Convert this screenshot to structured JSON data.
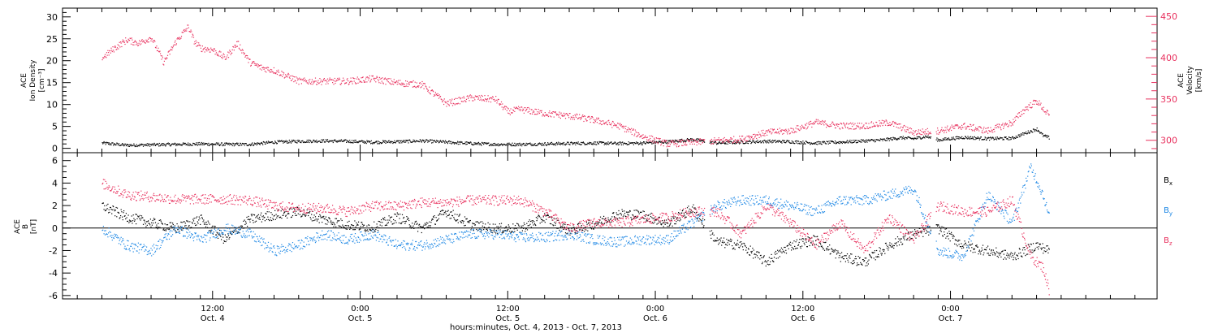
{
  "chart_data": [
    {
      "type": "scatter",
      "panel": "top",
      "ylabel_left": [
        "ACE",
        "Ion Density",
        "[cm⁻³]"
      ],
      "ylabel_right": [
        "ACE",
        "Velocity",
        "[km/s]"
      ],
      "ylim_left": [
        -1,
        32
      ],
      "yticks_left": [
        "0",
        "5",
        "10",
        "15",
        "20",
        "25",
        "30"
      ],
      "ylim_right": [
        285,
        460
      ],
      "yticks_right": [
        "300",
        "350",
        "400",
        "450"
      ],
      "colors": {
        "density": "#000000",
        "velocity": "#e8325f"
      },
      "series": [
        {
          "key": "density",
          "axis": "left",
          "x": [
            0,
            2,
            4,
            6,
            8,
            10,
            12,
            14,
            16,
            18,
            20,
            22,
            24,
            26,
            28,
            30,
            32,
            34,
            36,
            38,
            40,
            42,
            44,
            46,
            47.5,
            48,
            50,
            52,
            54,
            56,
            58,
            60,
            62,
            63.5,
            64,
            65,
            66,
            67,
            68,
            70,
            72,
            74,
            75,
            76,
            76.5,
            77
          ],
          "y": [
            1.3,
            0.8,
            0.9,
            1.0,
            1.1,
            1.0,
            1.0,
            1.5,
            1.7,
            1.8,
            1.7,
            1.5,
            1.6,
            1.8,
            1.5,
            1.2,
            1.0,
            1.0,
            1.1,
            1.2,
            1.3,
            1.2,
            1.3,
            1.6,
            2.0,
            2.1,
            1.3,
            1.5,
            1.7,
            1.6,
            1.3,
            1.5,
            1.8,
            2.0,
            2.2,
            2.5,
            2.3,
            2.8,
            2.0,
            2.6,
            2.3,
            2.4,
            3.5,
            4.5,
            3.0,
            2.5
          ],
          "gaps": [
            [
              49,
              49.4
            ],
            [
              67.4,
              67.8
            ]
          ]
        },
        {
          "key": "velocity",
          "axis": "right",
          "x": [
            0,
            1,
            2,
            3,
            4,
            5,
            6,
            7,
            7.5,
            8,
            9,
            10,
            11,
            12,
            13,
            14,
            16,
            18,
            20,
            22,
            24,
            26,
            28,
            30,
            32,
            33,
            34,
            36,
            38,
            40,
            42,
            44,
            46,
            48,
            50,
            52,
            54,
            56,
            58,
            60,
            62,
            64,
            66,
            68,
            70,
            72,
            74,
            75,
            76,
            77
          ],
          "y": [
            400,
            412,
            422,
            418,
            425,
            395,
            420,
            438,
            420,
            412,
            410,
            400,
            418,
            395,
            388,
            385,
            372,
            372,
            372,
            375,
            370,
            368,
            345,
            352,
            350,
            335,
            338,
            333,
            330,
            325,
            318,
            305,
            296,
            298,
            300,
            302,
            310,
            312,
            322,
            318,
            318,
            322,
            310,
            312,
            318,
            312,
            322,
            338,
            348,
            330
          ],
          "gaps": [
            [
              49,
              49.4
            ],
            [
              67.4,
              67.8
            ]
          ]
        }
      ]
    },
    {
      "type": "scatter",
      "panel": "bottom",
      "ylabel_left": [
        "ACE",
        "B",
        "[nT]"
      ],
      "ylim": [
        -6.3,
        6.7
      ],
      "yticks": [
        "-6",
        "-4",
        "-2",
        "0",
        "2",
        "4",
        "6"
      ],
      "zero_line": true,
      "legend": [
        "Bx",
        "By",
        "Bz"
      ],
      "legend_position": "right",
      "colors": {
        "Bx": "#000000",
        "By": "#1e88e5",
        "Bz": "#e8325f"
      },
      "series": [
        {
          "key": "Bx",
          "x": [
            0,
            2,
            4,
            6,
            8,
            10,
            12,
            14,
            16,
            18,
            20,
            22,
            24,
            26,
            28,
            30,
            32,
            34,
            36,
            38,
            40,
            42,
            44,
            46,
            48,
            50,
            52,
            54,
            56,
            58,
            60,
            62,
            64,
            66,
            68,
            70,
            72,
            74,
            76,
            77
          ],
          "y": [
            2.0,
            1.0,
            0.5,
            0.0,
            0.8,
            -1.0,
            0.8,
            1.2,
            1.5,
            0.8,
            0.3,
            0.1,
            1.0,
            0.0,
            1.5,
            0.3,
            0.0,
            0.0,
            1.0,
            -0.2,
            0.4,
            1.3,
            1.2,
            0.4,
            1.8,
            -1.2,
            -1.5,
            -3.0,
            -1.5,
            -1.0,
            -2.5,
            -3.0,
            -1.5,
            -0.5,
            0.0,
            -1.5,
            -2.0,
            -2.5,
            -1.5,
            -2.0
          ],
          "gaps": [
            [
              49,
              49.4
            ],
            [
              67.4,
              67.8
            ]
          ]
        },
        {
          "key": "By",
          "x": [
            0,
            2,
            4,
            6,
            8,
            10,
            12,
            14,
            16,
            18,
            20,
            22,
            24,
            26,
            28,
            30,
            32,
            34,
            36,
            38,
            40,
            42,
            44,
            46,
            48,
            50,
            52,
            54,
            56,
            58,
            60,
            62,
            64,
            66,
            68,
            70,
            72,
            74,
            75.5,
            76.5,
            77
          ],
          "y": [
            0.0,
            -1.5,
            -2.0,
            0.0,
            -1.0,
            0.0,
            -0.5,
            -2.0,
            -1.5,
            -0.5,
            -1.0,
            -0.5,
            -1.5,
            -1.5,
            -1.0,
            -0.5,
            -0.5,
            -0.8,
            -0.8,
            -0.5,
            -1.0,
            -1.2,
            -1.0,
            -1.0,
            0.5,
            2.0,
            2.5,
            2.5,
            2.0,
            1.5,
            2.5,
            2.5,
            3.0,
            3.5,
            -2.0,
            -2.5,
            3.0,
            0.5,
            5.5,
            3.0,
            1.0
          ],
          "gaps": [
            [
              49,
              49.4
            ],
            [
              67.4,
              67.8
            ]
          ]
        },
        {
          "key": "Bz",
          "x": [
            0,
            2,
            4,
            6,
            8,
            10,
            12,
            14,
            16,
            18,
            20,
            22,
            24,
            26,
            28,
            30,
            32,
            34,
            36,
            38,
            40,
            42,
            44,
            46,
            48,
            50,
            52,
            54,
            56,
            58,
            60,
            62,
            64,
            66,
            68,
            70,
            72,
            74,
            75.5,
            76.5,
            77
          ],
          "y": [
            4.0,
            3.0,
            2.8,
            2.6,
            2.6,
            2.6,
            2.5,
            2.0,
            1.8,
            1.8,
            1.5,
            2.0,
            2.0,
            2.3,
            2.3,
            2.5,
            2.5,
            2.5,
            1.5,
            0.0,
            0.5,
            0.5,
            0.8,
            1.0,
            1.5,
            1.5,
            -0.5,
            2.0,
            0.5,
            -1.5,
            0.5,
            -2.0,
            1.0,
            -1.0,
            2.0,
            1.5,
            1.5,
            2.5,
            -2.5,
            -3.5,
            -5.5
          ],
          "gaps": [
            [
              49,
              49.4
            ],
            [
              67.4,
              67.8
            ]
          ]
        }
      ]
    }
  ],
  "x_axis": {
    "type": "time",
    "xlim": [
      -3.2,
      85.8
    ],
    "ticks": [
      {
        "x": 9,
        "time": "12:00",
        "date": "Oct. 4"
      },
      {
        "x": 21,
        "time": "0:00",
        "date": "Oct. 5"
      },
      {
        "x": 33,
        "time": "12:00",
        "date": "Oct. 5"
      },
      {
        "x": 45,
        "time": "0:00",
        "date": "Oct. 6"
      },
      {
        "x": 57,
        "time": "12:00",
        "date": "Oct. 6"
      },
      {
        "x": 69,
        "time": "0:00",
        "date": "Oct. 7"
      }
    ],
    "xlabel": "hours:minutes, Oct.  4, 2013 - Oct.  7, 2013"
  },
  "legend_labels": {
    "Bx": {
      "base": "B",
      "sub": "x"
    },
    "By": {
      "base": "B",
      "sub": "y"
    },
    "Bz": {
      "base": "B",
      "sub": "z"
    }
  }
}
